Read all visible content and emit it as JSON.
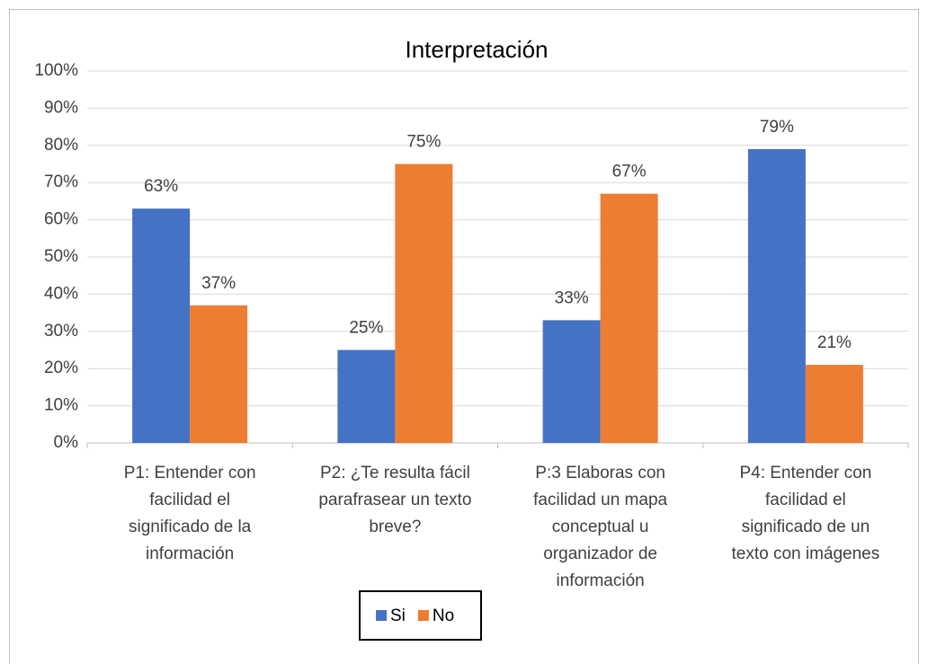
{
  "chart_data": {
    "type": "bar",
    "title": "Interpretación",
    "categories": [
      "P1: Entender con facilidad el significado de la información",
      "P2: ¿Te resulta fácil parafrasear un texto breve?",
      "P:3 Elaboras con facilidad un mapa conceptual u organizador de información",
      "P4: Entender con facilidad el significado de un texto con imágenes"
    ],
    "series": [
      {
        "name": "Si",
        "color": "#4472c4",
        "values": [
          63,
          25,
          33,
          79
        ],
        "value_labels": [
          "63%",
          "25%",
          "33%",
          "79%"
        ]
      },
      {
        "name": "No",
        "color": "#ed7d31",
        "values": [
          37,
          75,
          67,
          21
        ],
        "value_labels": [
          "37%",
          "75%",
          "67%",
          "21%"
        ]
      }
    ],
    "ylim": [
      0,
      100
    ],
    "yticks": [
      {
        "value": 0,
        "label": "0%"
      },
      {
        "value": 10,
        "label": "10%"
      },
      {
        "value": 20,
        "label": "20%"
      },
      {
        "value": 30,
        "label": "30%"
      },
      {
        "value": 40,
        "label": "40%"
      },
      {
        "value": 50,
        "label": "50%"
      },
      {
        "value": 60,
        "label": "60%"
      },
      {
        "value": 70,
        "label": "70%"
      },
      {
        "value": 80,
        "label": "80%"
      },
      {
        "value": 90,
        "label": "90%"
      },
      {
        "value": 100,
        "label": "100%"
      }
    ],
    "grid": true,
    "legend": "bottom"
  }
}
